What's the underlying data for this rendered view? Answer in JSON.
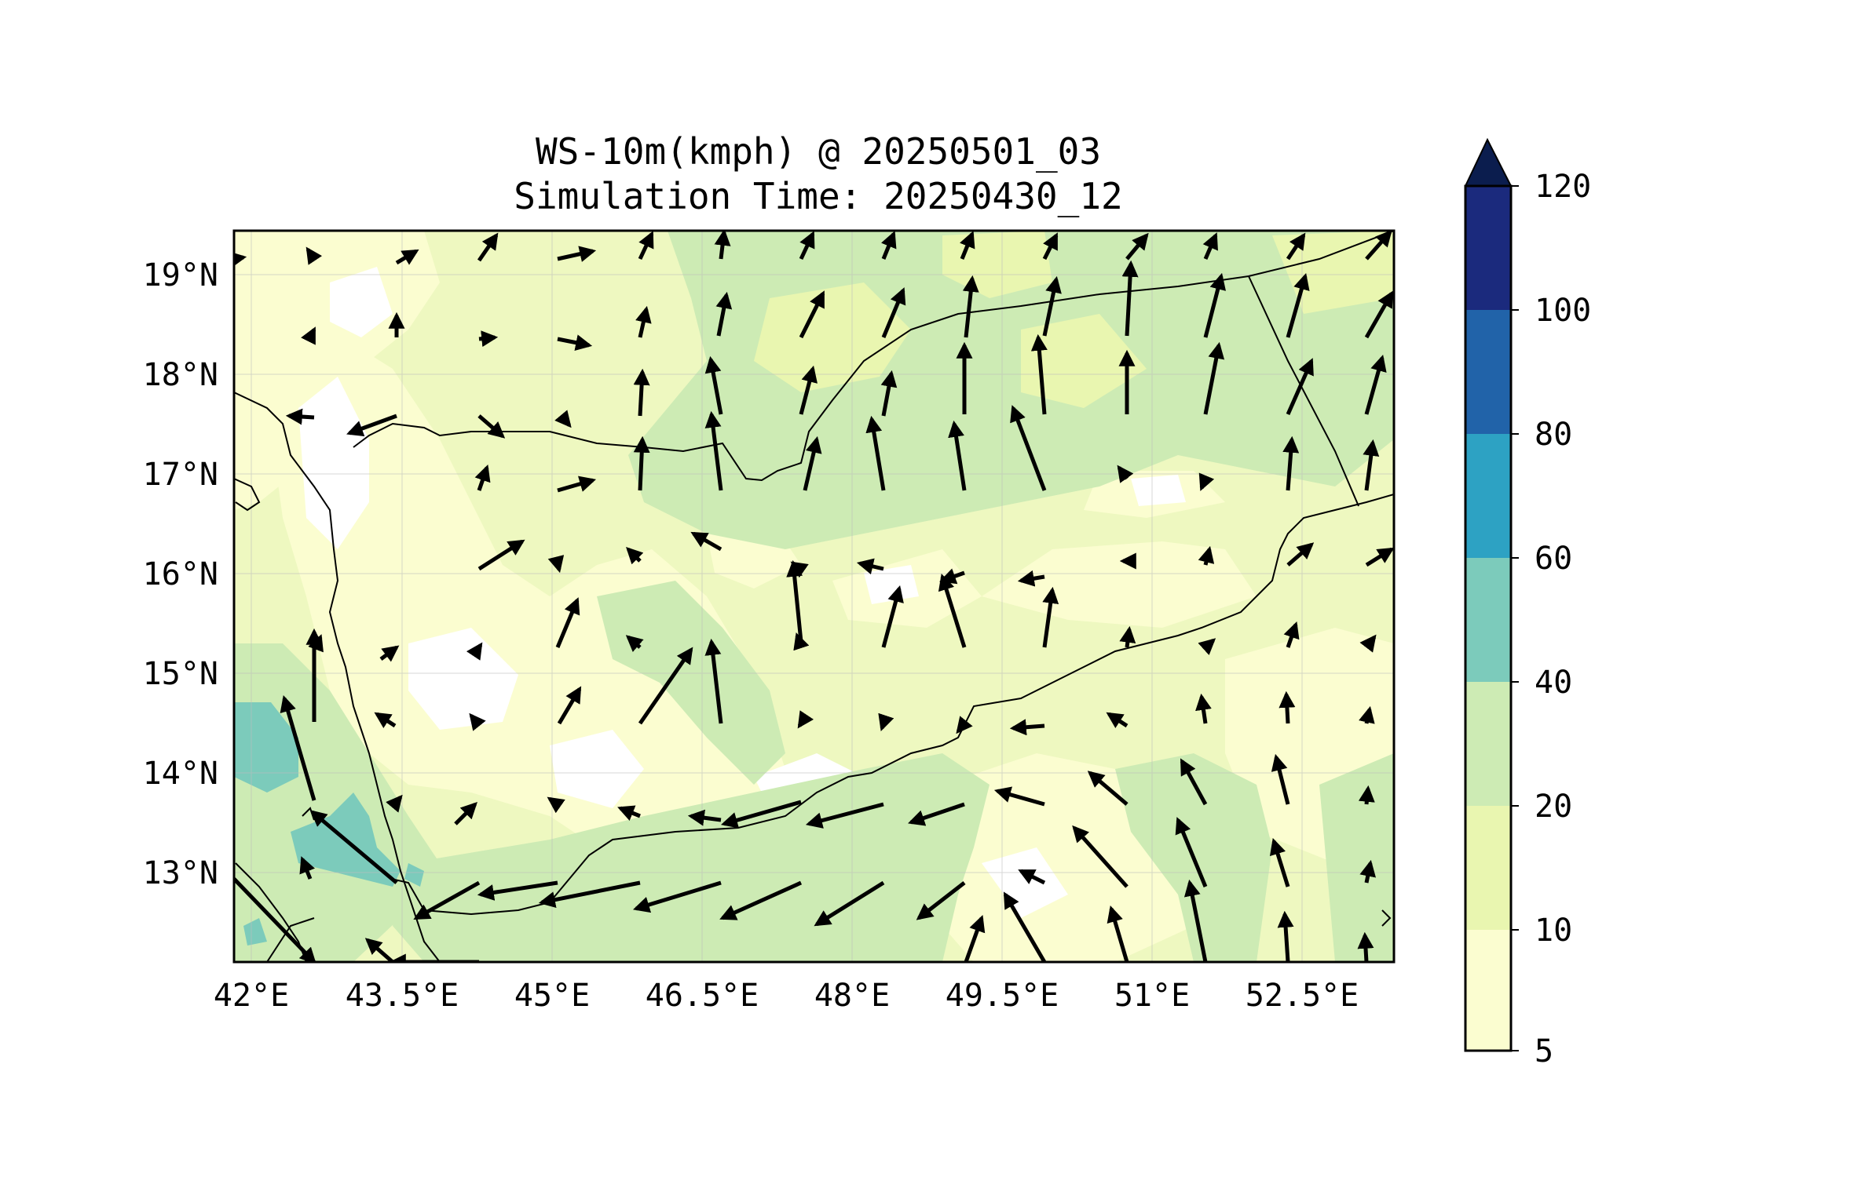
{
  "title": {
    "line1": "WS-10m(kmph) @ 20250501_03",
    "line2": "Simulation Time: 20250430_12"
  },
  "axes": {
    "lon_ticks": [
      "42°E",
      "43.5°E",
      "45°E",
      "46.5°E",
      "48°E",
      "49.5°E",
      "51°E",
      "52.5°E"
    ],
    "lat_ticks": [
      "19°N",
      "18°N",
      "17°N",
      "16°N",
      "15°N",
      "14°N",
      "13°N"
    ]
  },
  "colorbar": {
    "levels": [
      "5",
      "10",
      "20",
      "40",
      "60",
      "80",
      "100",
      "120"
    ],
    "colors": [
      "#fbfdd0",
      "#e9f6b0",
      "#cdebb4",
      "#7ccbbb",
      "#2da2c3",
      "#2163a9",
      "#1b2a7d",
      "#0b1d4e"
    ],
    "extend": "max"
  },
  "map": {
    "region": "Yemen / Gulf of Aden / Red Sea",
    "field_colors": {
      "calm": "#ffffff",
      "low": "#fbfdd0",
      "mid": "#e9f6b0",
      "high": "#cdebb4",
      "strong": "#7ccbbb"
    },
    "vector_color": "#000000",
    "coastline_color": "#000000"
  }
}
